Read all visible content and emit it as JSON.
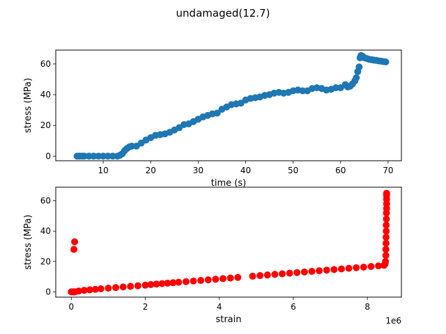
{
  "figure": {
    "title": "undamaged(12.7)"
  },
  "chart_data": [
    {
      "type": "scatter",
      "xlabel": "time (s)",
      "ylabel": "stress (MPa)",
      "xlim": [
        0.0,
        72.8
      ],
      "ylim": [
        -3.0,
        69.0
      ],
      "x_ticks": [
        10,
        20,
        30,
        40,
        50,
        60,
        70
      ],
      "x_tick_labels": [
        "10",
        "20",
        "30",
        "40",
        "50",
        "60",
        "70"
      ],
      "y_ticks": [
        0,
        20,
        40,
        60
      ],
      "y_tick_labels": [
        "0",
        "20",
        "40",
        "60"
      ],
      "x_offset_label": "",
      "grid": false,
      "legend": false,
      "color": "#1f77b4",
      "series": [
        {
          "x": [
            4.5,
            5.0,
            5.5,
            6.0,
            7.0,
            8.0,
            9.0,
            10.0,
            11.0,
            12.0,
            13.0,
            13.5,
            14.0,
            14.5,
            15.0,
            15.5,
            16.0,
            17.0,
            18.0,
            19.0,
            20.0,
            21.0,
            22.0,
            23.0,
            24.0,
            25.0,
            26.0,
            27.0,
            28.0,
            29.0,
            30.0,
            31.0,
            32.0,
            33.0,
            34.0,
            35.0,
            36.0,
            37.0,
            38.0,
            39.0,
            40.0,
            41.0,
            42.0,
            43.0,
            44.0,
            45.0,
            46.0,
            47.0,
            48.0,
            49.0,
            50.0,
            51.0,
            52.0,
            53.0,
            54.0,
            55.0,
            56.0,
            57.0,
            58.0,
            59.0,
            60.0,
            61.0,
            61.5,
            62.0,
            62.5,
            63.0,
            63.3,
            63.6,
            63.9,
            64.1,
            64.3,
            64.6,
            65.0,
            65.5,
            66.0,
            66.5,
            67.0,
            67.5,
            68.0,
            68.5,
            69.0,
            69.5
          ],
          "y": [
            0,
            0,
            0,
            0,
            0,
            0,
            0,
            0,
            0,
            0,
            0,
            0.5,
            1.5,
            3.5,
            5.0,
            6.0,
            6.5,
            6.5,
            8.5,
            10.5,
            12.0,
            13.5,
            14.0,
            14.5,
            15.5,
            17.0,
            18.5,
            20.5,
            21.0,
            22.5,
            24.0,
            25.5,
            26.5,
            27.5,
            28.0,
            30.5,
            32.0,
            33.5,
            34.0,
            34.5,
            36.5,
            37.5,
            38.0,
            38.5,
            39.5,
            40.0,
            41.0,
            41.5,
            41.0,
            41.5,
            42.5,
            43.0,
            42.5,
            42.5,
            44.0,
            44.5,
            44.0,
            43.0,
            43.5,
            44.5,
            44.5,
            46.5,
            45.0,
            45.5,
            47.0,
            49.0,
            51.0,
            55.0,
            58.0,
            64.0,
            65.5,
            65.0,
            64.0,
            63.5,
            63.0,
            62.8,
            62.5,
            62.3,
            62.0,
            61.8,
            61.5,
            61.3
          ]
        }
      ]
    },
    {
      "type": "scatter",
      "xlabel": "strain",
      "ylabel": "stress (MPa)",
      "xlim": [
        -420000,
        8920000
      ],
      "ylim": [
        -3.5,
        69.0
      ],
      "x_ticks": [
        0,
        2000000,
        4000000,
        6000000,
        8000000
      ],
      "x_tick_labels": [
        "0",
        "2",
        "4",
        "6",
        "8"
      ],
      "y_ticks": [
        0,
        20,
        40,
        60
      ],
      "y_tick_labels": [
        "0",
        "20",
        "40",
        "60"
      ],
      "x_offset_label": "1e6",
      "grid": false,
      "legend": false,
      "color": "#ff0000",
      "series": [
        {
          "x": [
            0,
            20000,
            40000,
            60000,
            80000,
            100000,
            70000,
            90000,
            200000,
            350000,
            500000,
            650000,
            800000,
            1000000,
            1200000,
            1400000,
            1600000,
            1800000,
            2000000,
            2150000,
            2300000,
            2450000,
            2600000,
            2750000,
            2900000,
            3100000,
            3300000,
            3500000,
            3700000,
            3900000,
            4100000,
            4300000,
            4500000,
            4900000,
            5100000,
            5300000,
            5500000,
            5700000,
            5900000,
            6100000,
            6300000,
            6500000,
            6700000,
            6900000,
            7100000,
            7300000,
            7500000,
            7700000,
            7900000,
            8100000,
            8300000,
            8450000,
            8480000,
            8490000,
            8500000,
            8500000,
            8505000,
            8505000,
            8510000,
            8510000,
            8515000,
            8515000,
            8520000,
            8520000,
            8520000,
            8520000,
            8520000
          ],
          "y": [
            0,
            0,
            0,
            0,
            0,
            0,
            28,
            33,
            0.5,
            1.0,
            1.3,
            1.6,
            2.0,
            2.4,
            2.8,
            3.2,
            3.6,
            4.0,
            4.4,
            4.8,
            5.1,
            5.4,
            5.7,
            6.0,
            6.3,
            6.7,
            7.1,
            7.5,
            7.9,
            8.3,
            8.7,
            9.1,
            9.5,
            10.3,
            10.7,
            11.1,
            11.5,
            11.9,
            12.3,
            12.7,
            13.1,
            13.5,
            13.9,
            14.3,
            14.7,
            15.1,
            15.5,
            15.9,
            16.3,
            16.7,
            17.1,
            17.5,
            18.5,
            20,
            24,
            28,
            32,
            36,
            40,
            44,
            48,
            52,
            55,
            58,
            61,
            63.5,
            65
          ]
        }
      ]
    }
  ]
}
